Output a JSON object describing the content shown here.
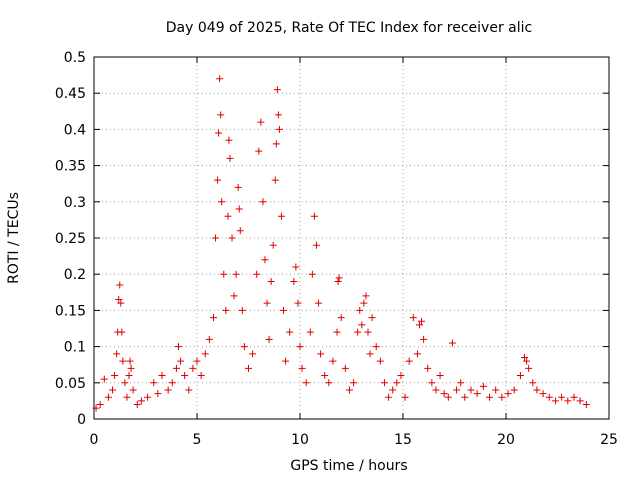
{
  "chart_data": {
    "type": "scatter",
    "title": "Day 049 of 2025, Rate Of TEC Index for receiver alic",
    "xlabel": "GPS time / hours",
    "ylabel": "ROTI / TECUs",
    "xlim": [
      0,
      25
    ],
    "ylim": [
      0,
      0.5
    ],
    "xticks": [
      0,
      5,
      10,
      15,
      20,
      25
    ],
    "xtick_labels": [
      "0",
      "5",
      "10",
      "15",
      "20",
      "25"
    ],
    "yticks": [
      0,
      0.05,
      0.1,
      0.15,
      0.2,
      0.25,
      0.3,
      0.35,
      0.4,
      0.45,
      0.5
    ],
    "ytick_labels": [
      "0",
      "0.05",
      "0.1",
      "0.15",
      "0.2",
      "0.25",
      "0.3",
      "0.35",
      "0.4",
      "0.45",
      "0.5"
    ],
    "grid": true,
    "marker": "plus",
    "color": "#e00000",
    "series": [
      {
        "x": [
          0.1,
          0.3,
          0.5,
          0.7,
          0.9,
          1.0,
          1.1,
          1.15,
          1.2,
          1.25,
          1.3,
          1.35,
          1.4,
          1.5,
          1.6,
          1.7,
          1.75,
          1.8,
          1.9,
          2.1,
          2.3,
          2.6,
          2.9,
          3.1,
          3.3,
          3.6,
          3.8,
          4.0,
          4.1,
          4.2,
          4.4,
          4.6,
          4.8,
          5.0,
          5.2,
          5.4,
          5.6,
          5.8,
          5.9,
          6.0,
          6.05,
          6.1,
          6.15,
          6.2,
          6.3,
          6.4,
          6.5,
          6.55,
          6.6,
          6.7,
          6.8,
          6.9,
          7.0,
          7.05,
          7.1,
          7.2,
          7.3,
          7.5,
          7.7,
          7.9,
          8.0,
          8.1,
          8.2,
          8.3,
          8.4,
          8.5,
          8.6,
          8.7,
          8.8,
          8.85,
          8.9,
          8.95,
          9.0,
          9.1,
          9.2,
          9.3,
          9.5,
          9.7,
          9.8,
          9.9,
          10.0,
          10.1,
          10.3,
          10.5,
          10.6,
          10.7,
          10.8,
          10.9,
          11.0,
          11.2,
          11.4,
          11.6,
          11.8,
          11.85,
          11.9,
          12.0,
          12.2,
          12.4,
          12.6,
          12.8,
          12.9,
          13.0,
          13.1,
          13.2,
          13.3,
          13.4,
          13.5,
          13.7,
          13.9,
          14.1,
          14.3,
          14.5,
          14.7,
          14.9,
          15.1,
          15.3,
          15.5,
          15.7,
          15.8,
          15.9,
          16.0,
          16.2,
          16.4,
          16.6,
          16.8,
          17.0,
          17.2,
          17.4,
          17.6,
          17.8,
          18.0,
          18.3,
          18.6,
          18.9,
          19.2,
          19.5,
          19.8,
          20.1,
          20.4,
          20.7,
          20.9,
          21.0,
          21.1,
          21.3,
          21.5,
          21.8,
          22.1,
          22.4,
          22.7,
          23.0,
          23.3,
          23.6,
          23.9
        ],
        "y": [
          0.015,
          0.02,
          0.055,
          0.03,
          0.04,
          0.06,
          0.09,
          0.12,
          0.165,
          0.185,
          0.16,
          0.12,
          0.08,
          0.05,
          0.03,
          0.06,
          0.08,
          0.07,
          0.04,
          0.02,
          0.025,
          0.03,
          0.05,
          0.035,
          0.06,
          0.04,
          0.05,
          0.07,
          0.1,
          0.08,
          0.06,
          0.04,
          0.07,
          0.08,
          0.06,
          0.09,
          0.11,
          0.14,
          0.25,
          0.33,
          0.395,
          0.47,
          0.42,
          0.3,
          0.2,
          0.15,
          0.28,
          0.385,
          0.36,
          0.25,
          0.17,
          0.2,
          0.32,
          0.29,
          0.26,
          0.15,
          0.1,
          0.07,
          0.09,
          0.2,
          0.37,
          0.41,
          0.3,
          0.22,
          0.16,
          0.11,
          0.19,
          0.24,
          0.33,
          0.38,
          0.455,
          0.42,
          0.4,
          0.28,
          0.15,
          0.08,
          0.12,
          0.19,
          0.21,
          0.16,
          0.1,
          0.07,
          0.05,
          0.12,
          0.2,
          0.28,
          0.24,
          0.16,
          0.09,
          0.06,
          0.05,
          0.08,
          0.12,
          0.19,
          0.195,
          0.14,
          0.07,
          0.04,
          0.05,
          0.12,
          0.15,
          0.13,
          0.16,
          0.17,
          0.12,
          0.09,
          0.14,
          0.1,
          0.08,
          0.05,
          0.03,
          0.04,
          0.05,
          0.06,
          0.03,
          0.08,
          0.14,
          0.09,
          0.13,
          0.135,
          0.11,
          0.07,
          0.05,
          0.04,
          0.06,
          0.035,
          0.03,
          0.105,
          0.04,
          0.05,
          0.03,
          0.04,
          0.035,
          0.045,
          0.03,
          0.04,
          0.03,
          0.035,
          0.04,
          0.06,
          0.085,
          0.08,
          0.07,
          0.05,
          0.04,
          0.035,
          0.03,
          0.025,
          0.03,
          0.025,
          0.03,
          0.025,
          0.02
        ]
      }
    ]
  }
}
